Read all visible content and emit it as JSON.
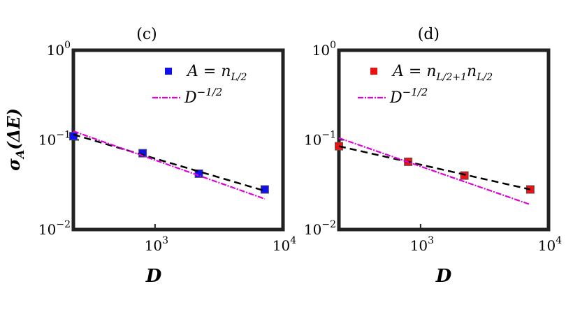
{
  "figure": {
    "ylabel": "σA(ΔE)"
  },
  "chart_data": [
    {
      "type": "scatter",
      "title": "(c)",
      "xlabel": "D",
      "ylabel": "σA(ΔE)",
      "xscale": "log",
      "yscale": "log",
      "xlim": [
        230,
        10000
      ],
      "ylim": [
        0.01,
        1
      ],
      "xticks": [
        {
          "value": 1000,
          "mantissa": "10",
          "exp": "3"
        },
        {
          "value": 10000,
          "mantissa": "10",
          "exp": "4"
        }
      ],
      "yticks": [
        {
          "value": 0.01,
          "mantissa": "10",
          "exp": "−2"
        },
        {
          "value": 0.1,
          "mantissa": "10",
          "exp": "−1"
        },
        {
          "value": 1,
          "mantissa": "10",
          "exp": "0"
        }
      ],
      "legend": "top-right",
      "grid": false,
      "series": [
        {
          "name": "A = nL/2",
          "kind": "markers",
          "color": "#1010ee",
          "x": [
            230,
            800,
            2200,
            7200
          ],
          "y": [
            0.11,
            0.071,
            0.042,
            0.028
          ]
        },
        {
          "kind": "fit",
          "color": "#000000",
          "x": [
            230,
            7200
          ],
          "y": [
            0.115,
            0.027
          ]
        },
        {
          "name": "D−1/2",
          "kind": "reference",
          "color": "#dd00dd",
          "x": [
            230,
            7200
          ],
          "y": [
            0.125,
            0.022
          ]
        }
      ],
      "legend_entries": [
        {
          "label": "A = nL/2",
          "kind": "marker",
          "color": "#1010ee"
        },
        {
          "label": "D−1/2",
          "kind": "line",
          "color": "#dd00dd"
        }
      ]
    },
    {
      "type": "scatter",
      "title": "(d)",
      "xlabel": "D",
      "xscale": "log",
      "yscale": "log",
      "xlim": [
        230,
        10000
      ],
      "ylim": [
        0.01,
        1
      ],
      "xticks": [
        {
          "value": 1000,
          "mantissa": "10",
          "exp": "3"
        },
        {
          "value": 10000,
          "mantissa": "10",
          "exp": "4"
        }
      ],
      "yticks": [
        {
          "value": 0.01,
          "mantissa": "10",
          "exp": "−2"
        },
        {
          "value": 0.1,
          "mantissa": "10",
          "exp": "−1"
        },
        {
          "value": 1,
          "mantissa": "10",
          "exp": "0"
        }
      ],
      "legend": "top-right",
      "grid": false,
      "series": [
        {
          "name": "A = nL/2+1nL/2",
          "kind": "markers",
          "color": "#ee1010",
          "x": [
            230,
            800,
            2200,
            7200
          ],
          "y": [
            0.085,
            0.057,
            0.04,
            0.028
          ]
        },
        {
          "kind": "fit",
          "color": "#000000",
          "x": [
            230,
            7200
          ],
          "y": [
            0.085,
            0.028
          ]
        },
        {
          "name": "D−1/2",
          "kind": "reference",
          "color": "#dd00dd",
          "x": [
            230,
            7200
          ],
          "y": [
            0.105,
            0.019
          ]
        }
      ],
      "legend_entries": [
        {
          "label": "A = nL/2+1nL/2",
          "kind": "marker",
          "color": "#ee1010"
        },
        {
          "label": "D−1/2",
          "kind": "line",
          "color": "#dd00dd"
        }
      ]
    }
  ]
}
